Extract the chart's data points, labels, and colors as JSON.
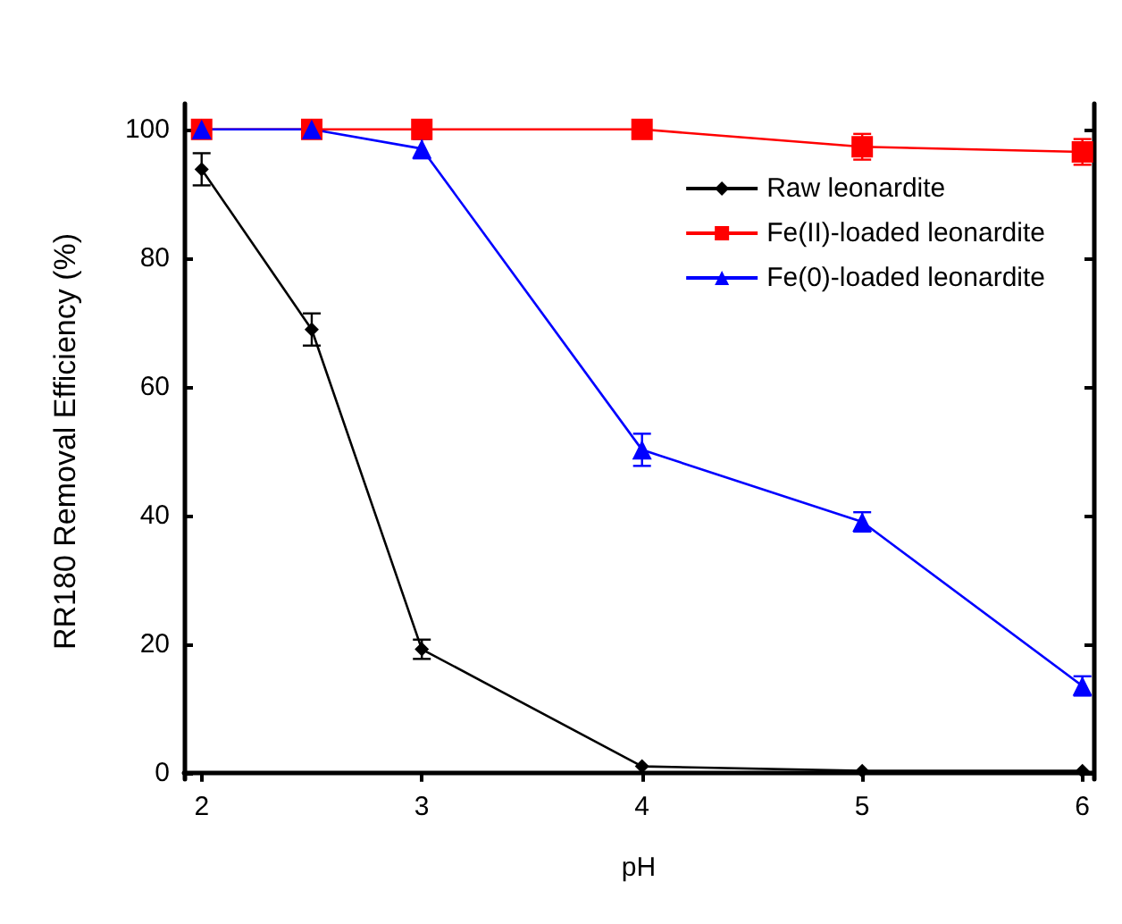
{
  "chart_data": {
    "type": "line",
    "xlabel": "pH",
    "ylabel": "RR180 Removal Efficiency (%)",
    "x": [
      2,
      2.5,
      3,
      4,
      5,
      6
    ],
    "series": [
      {
        "name": "Raw leonardite",
        "color": "#000000",
        "marker": "diamond",
        "values": [
          93.8,
          68.9,
          19.2,
          1,
          0.3,
          0.3
        ],
        "errors": [
          2.5,
          2.5,
          1.5,
          null,
          null,
          null
        ]
      },
      {
        "name": "Fe(II)-loaded leonardite",
        "color": "#ff0000",
        "marker": "square",
        "values": [
          100,
          100,
          100,
          100,
          97.3,
          96.5
        ],
        "errors": [
          null,
          null,
          null,
          null,
          2,
          2
        ]
      },
      {
        "name": "Fe(0)-loaded leonardite",
        "color": "#0000ff",
        "marker": "triangle",
        "values": [
          100,
          100,
          97,
          50.2,
          39,
          13.5
        ],
        "errors": [
          null,
          null,
          1.5,
          2.5,
          1.5,
          1.5
        ]
      }
    ],
    "xlim": [
      1.92,
      6.05
    ],
    "ylim": [
      -1,
      104
    ],
    "xticks": [
      2,
      3,
      4,
      5,
      6
    ],
    "yticks": [
      0,
      20,
      40,
      60,
      80,
      100
    ],
    "grid": false,
    "legend": "top right",
    "line_style": "solid"
  }
}
